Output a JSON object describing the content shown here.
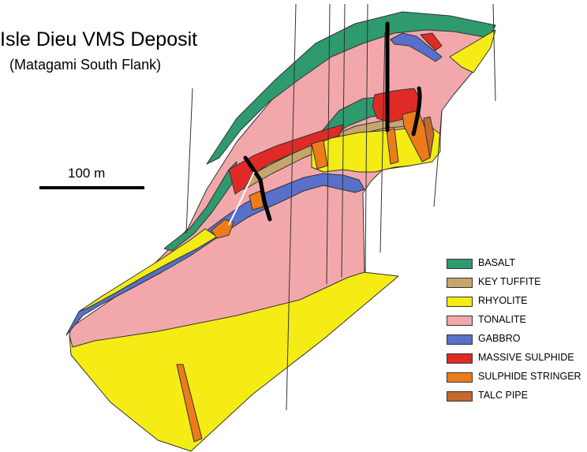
{
  "figure": {
    "title": "Isle Dieu VMS Deposit",
    "subtitle": "(Matagami South Flank)",
    "scale_label": "100 m"
  },
  "legend": {
    "items": [
      {
        "label": "BASALT",
        "color": "#2e9a6e"
      },
      {
        "label": "KEY TUFFITE",
        "color": "#c6a66a"
      },
      {
        "label": "RHYOLITE",
        "color": "#f4ec14"
      },
      {
        "label": "TONALITE",
        "color": "#f2a8aa"
      },
      {
        "label": "GABBRO",
        "color": "#5870c8"
      },
      {
        "label": "MASSIVE SULPHIDE",
        "color": "#e02a26"
      },
      {
        "label": "SULPHIDE STRINGER",
        "color": "#ec7c1a"
      },
      {
        "label": "TALC PIPE",
        "color": "#c6682c"
      }
    ]
  },
  "colors": {
    "basalt": "#2e9a6e",
    "tuffite": "#c6a66a",
    "rhyolite": "#f4ec14",
    "tonalite": "#f2a8aa",
    "gabbro": "#5870c8",
    "massive_sulphide": "#e02a26",
    "stringer": "#ec7c1a",
    "talc": "#c6682c",
    "outline": "#333333",
    "fault": "#000000"
  }
}
